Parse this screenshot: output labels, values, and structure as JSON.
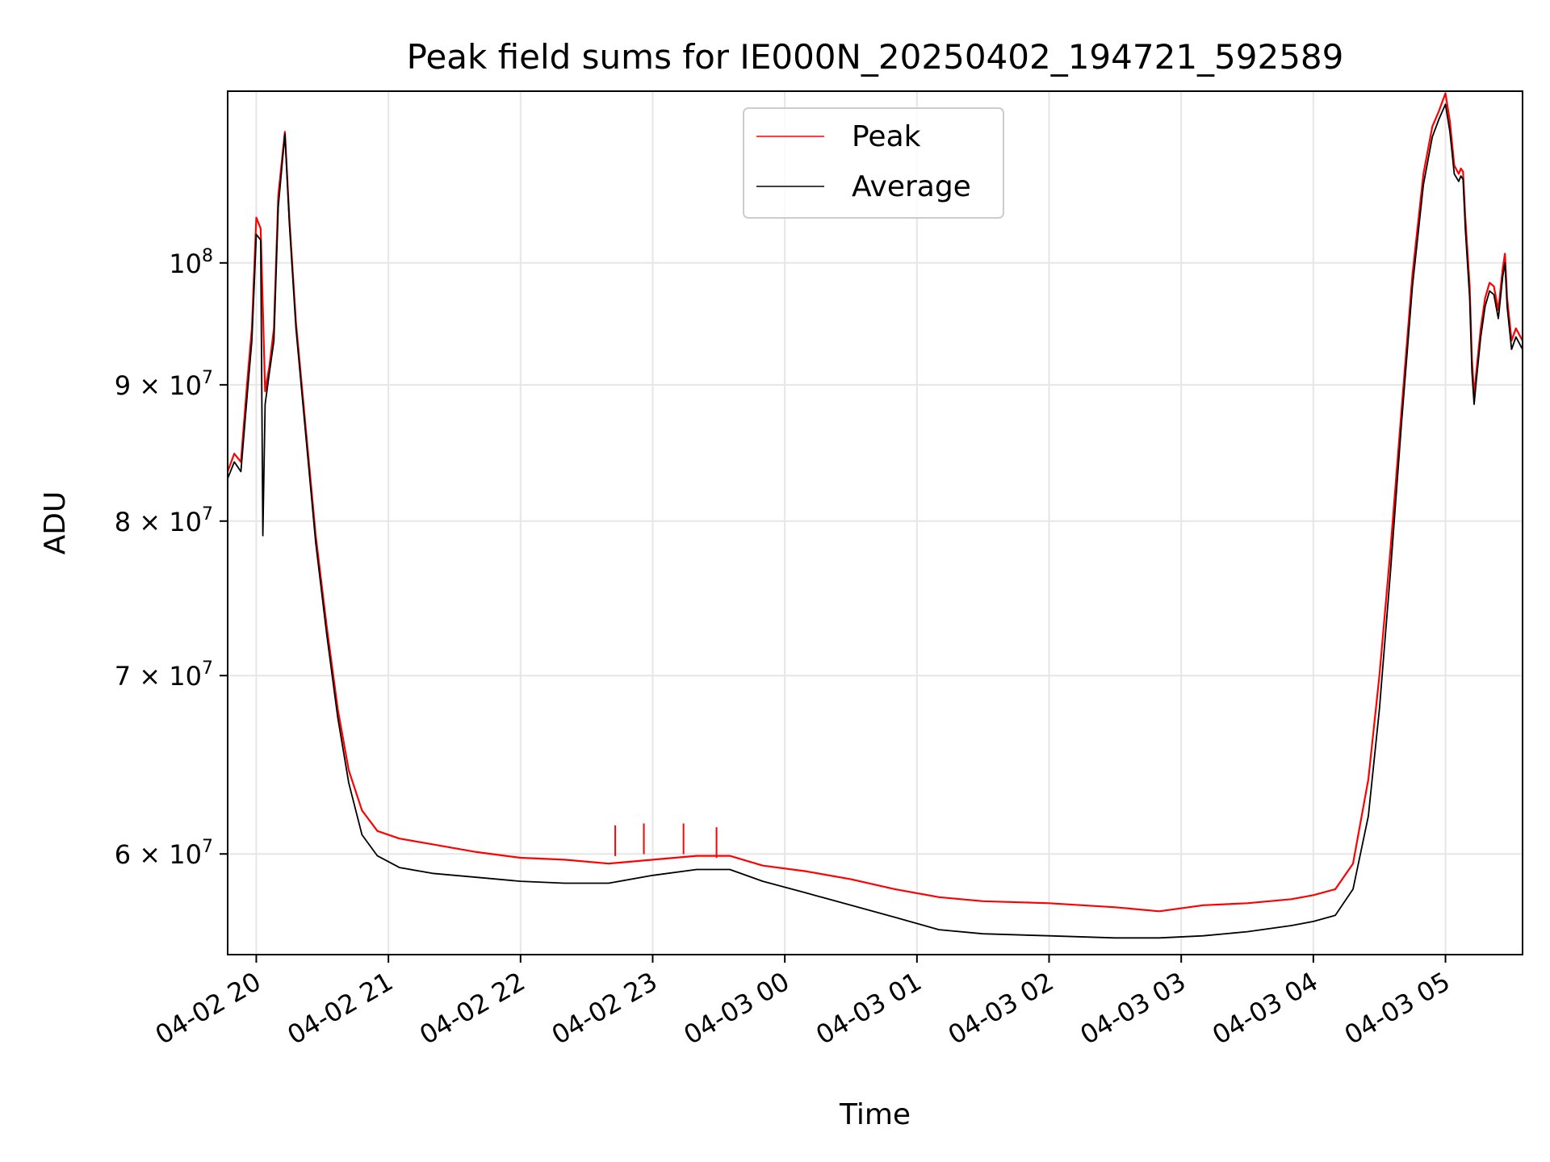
{
  "chart_data": {
    "type": "line",
    "title": "Peak field sums for IE000N_20250402_194721_592589",
    "xlabel": "Time",
    "ylabel": "ADU",
    "y_scale": "log",
    "ylim": [
      55000000,
      116000000
    ],
    "xlim": [
      "2025-04-02 19:47",
      "2025-04-03 05:35"
    ],
    "grid": true,
    "legend_position": "upper-center",
    "x_ticks": [
      {
        "t": "2025-04-02 20:00",
        "label": "04-02 20"
      },
      {
        "t": "2025-04-02 21:00",
        "label": "04-02 21"
      },
      {
        "t": "2025-04-02 22:00",
        "label": "04-02 22"
      },
      {
        "t": "2025-04-02 23:00",
        "label": "04-02 23"
      },
      {
        "t": "2025-04-03 00:00",
        "label": "04-03 00"
      },
      {
        "t": "2025-04-03 01:00",
        "label": "04-03 01"
      },
      {
        "t": "2025-04-03 02:00",
        "label": "04-03 02"
      },
      {
        "t": "2025-04-03 03:00",
        "label": "04-03 03"
      },
      {
        "t": "2025-04-03 04:00",
        "label": "04-03 04"
      },
      {
        "t": "2025-04-03 05:00",
        "label": "04-03 05"
      }
    ],
    "y_ticks": [
      {
        "value": 60000000,
        "mant": "6",
        "base": "10",
        "exp": "7"
      },
      {
        "value": 70000000,
        "mant": "7",
        "base": "10",
        "exp": "7"
      },
      {
        "value": 80000000,
        "mant": "8",
        "base": "10",
        "exp": "7"
      },
      {
        "value": 90000000,
        "mant": "9",
        "base": "10",
        "exp": "7"
      },
      {
        "value": 100000000,
        "mant": "",
        "base": "10",
        "exp": "8"
      }
    ],
    "series": [
      {
        "name": "Peak",
        "color": "#ff0000",
        "points": [
          [
            "2025-04-02 19:47",
            83500000
          ],
          [
            "2025-04-02 19:50",
            84800000
          ],
          [
            "2025-04-02 19:53",
            84200000
          ],
          [
            "2025-04-02 19:56",
            90500000
          ],
          [
            "2025-04-02 19:58",
            94500000
          ],
          [
            "2025-04-02 20:00",
            104000000
          ],
          [
            "2025-04-02 20:02",
            103000000
          ],
          [
            "2025-04-02 20:04",
            89500000
          ],
          [
            "2025-04-02 20:06",
            91500000
          ],
          [
            "2025-04-02 20:08",
            94500000
          ],
          [
            "2025-04-02 20:10",
            106000000
          ],
          [
            "2025-04-02 20:13",
            112000000
          ],
          [
            "2025-04-02 20:15",
            104000000
          ],
          [
            "2025-04-02 20:18",
            95000000
          ],
          [
            "2025-04-02 20:22",
            87500000
          ],
          [
            "2025-04-02 20:27",
            79000000
          ],
          [
            "2025-04-02 20:32",
            73000000
          ],
          [
            "2025-04-02 20:37",
            68000000
          ],
          [
            "2025-04-02 20:42",
            64500000
          ],
          [
            "2025-04-02 20:48",
            62300000
          ],
          [
            "2025-04-02 20:55",
            61200000
          ],
          [
            "2025-04-02 21:05",
            60800000
          ],
          [
            "2025-04-02 21:20",
            60500000
          ],
          [
            "2025-04-02 21:40",
            60100000
          ],
          [
            "2025-04-02 22:00",
            59800000
          ],
          [
            "2025-04-02 22:20",
            59700000
          ],
          [
            "2025-04-02 22:40",
            59500000
          ],
          [
            "2025-04-02 23:00",
            59700000
          ],
          [
            "2025-04-02 23:20",
            59900000
          ],
          [
            "2025-04-02 23:35",
            59900000
          ],
          [
            "2025-04-02 23:50",
            59400000
          ],
          [
            "2025-04-03 00:10",
            59100000
          ],
          [
            "2025-04-03 00:30",
            58700000
          ],
          [
            "2025-04-03 00:50",
            58200000
          ],
          [
            "2025-04-03 01:10",
            57800000
          ],
          [
            "2025-04-03 01:30",
            57600000
          ],
          [
            "2025-04-03 02:00",
            57500000
          ],
          [
            "2025-04-03 02:30",
            57300000
          ],
          [
            "2025-04-03 02:50",
            57100000
          ],
          [
            "2025-04-03 03:10",
            57400000
          ],
          [
            "2025-04-03 03:30",
            57500000
          ],
          [
            "2025-04-03 03:50",
            57700000
          ],
          [
            "2025-04-03 04:00",
            57900000
          ],
          [
            "2025-04-03 04:10",
            58200000
          ],
          [
            "2025-04-03 04:18",
            59500000
          ],
          [
            "2025-04-03 04:25",
            64000000
          ],
          [
            "2025-04-03 04:30",
            70000000
          ],
          [
            "2025-04-03 04:35",
            78000000
          ],
          [
            "2025-04-03 04:40",
            88000000
          ],
          [
            "2025-04-03 04:45",
            99000000
          ],
          [
            "2025-04-03 04:50",
            108000000
          ],
          [
            "2025-04-03 04:54",
            112500000
          ],
          [
            "2025-04-03 04:57",
            114000000
          ],
          [
            "2025-04-03 05:00",
            115800000
          ],
          [
            "2025-04-03 05:02",
            113000000
          ],
          [
            "2025-04-03 05:04",
            108800000
          ],
          [
            "2025-04-03 05:06",
            108000000
          ],
          [
            "2025-04-03 05:07",
            108500000
          ],
          [
            "2025-04-03 05:08",
            108200000
          ],
          [
            "2025-04-03 05:09",
            104000000
          ],
          [
            "2025-04-03 05:11",
            98000000
          ],
          [
            "2025-04-03 05:12",
            92000000
          ],
          [
            "2025-04-03 05:13",
            89200000
          ],
          [
            "2025-04-03 05:14",
            91000000
          ],
          [
            "2025-04-03 05:16",
            94500000
          ],
          [
            "2025-04-03 05:18",
            97000000
          ],
          [
            "2025-04-03 05:20",
            98300000
          ],
          [
            "2025-04-03 05:22",
            98000000
          ],
          [
            "2025-04-03 05:24",
            96000000
          ],
          [
            "2025-04-03 05:26",
            99500000
          ],
          [
            "2025-04-03 05:27",
            100800000
          ],
          [
            "2025-04-03 05:28",
            97000000
          ],
          [
            "2025-04-03 05:30",
            93500000
          ],
          [
            "2025-04-03 05:32",
            94500000
          ],
          [
            "2025-04-03 05:35",
            93500000
          ]
        ]
      },
      {
        "name": "Average",
        "color": "#000000",
        "points": [
          [
            "2025-04-02 19:47",
            83000000
          ],
          [
            "2025-04-02 19:50",
            84200000
          ],
          [
            "2025-04-02 19:53",
            83500000
          ],
          [
            "2025-04-02 19:56",
            89500000
          ],
          [
            "2025-04-02 19:58",
            93500000
          ],
          [
            "2025-04-02 20:00",
            102500000
          ],
          [
            "2025-04-02 20:02",
            102000000
          ],
          [
            "2025-04-02 20:03",
            79000000
          ],
          [
            "2025-04-02 20:04",
            88500000
          ],
          [
            "2025-04-02 20:06",
            91000000
          ],
          [
            "2025-04-02 20:08",
            93500000
          ],
          [
            "2025-04-02 20:10",
            105000000
          ],
          [
            "2025-04-02 20:13",
            111800000
          ],
          [
            "2025-04-02 20:15",
            103500000
          ],
          [
            "2025-04-02 20:18",
            94500000
          ],
          [
            "2025-04-02 20:22",
            87000000
          ],
          [
            "2025-04-02 20:27",
            78500000
          ],
          [
            "2025-04-02 20:32",
            72500000
          ],
          [
            "2025-04-02 20:37",
            67500000
          ],
          [
            "2025-04-02 20:42",
            63800000
          ],
          [
            "2025-04-02 20:48",
            61000000
          ],
          [
            "2025-04-02 20:55",
            59900000
          ],
          [
            "2025-04-02 21:05",
            59300000
          ],
          [
            "2025-04-02 21:20",
            59000000
          ],
          [
            "2025-04-02 21:40",
            58800000
          ],
          [
            "2025-04-02 22:00",
            58600000
          ],
          [
            "2025-04-02 22:20",
            58500000
          ],
          [
            "2025-04-02 22:40",
            58500000
          ],
          [
            "2025-04-02 23:00",
            58900000
          ],
          [
            "2025-04-02 23:20",
            59200000
          ],
          [
            "2025-04-02 23:35",
            59200000
          ],
          [
            "2025-04-02 23:50",
            58600000
          ],
          [
            "2025-04-03 00:10",
            58000000
          ],
          [
            "2025-04-03 00:30",
            57400000
          ],
          [
            "2025-04-03 00:50",
            56800000
          ],
          [
            "2025-04-03 01:10",
            56200000
          ],
          [
            "2025-04-03 01:30",
            56000000
          ],
          [
            "2025-04-03 02:00",
            55900000
          ],
          [
            "2025-04-03 02:30",
            55800000
          ],
          [
            "2025-04-03 02:50",
            55800000
          ],
          [
            "2025-04-03 03:10",
            55900000
          ],
          [
            "2025-04-03 03:30",
            56100000
          ],
          [
            "2025-04-03 03:50",
            56400000
          ],
          [
            "2025-04-03 04:00",
            56600000
          ],
          [
            "2025-04-03 04:10",
            56900000
          ],
          [
            "2025-04-03 04:18",
            58200000
          ],
          [
            "2025-04-03 04:25",
            62000000
          ],
          [
            "2025-04-03 04:30",
            68000000
          ],
          [
            "2025-04-03 04:35",
            76500000
          ],
          [
            "2025-04-03 04:40",
            87000000
          ],
          [
            "2025-04-03 04:45",
            98000000
          ],
          [
            "2025-04-03 04:50",
            107000000
          ],
          [
            "2025-04-03 04:54",
            111500000
          ],
          [
            "2025-04-03 04:57",
            113200000
          ],
          [
            "2025-04-03 05:00",
            114700000
          ],
          [
            "2025-04-03 05:02",
            112000000
          ],
          [
            "2025-04-03 05:04",
            108000000
          ],
          [
            "2025-04-03 05:06",
            107300000
          ],
          [
            "2025-04-03 05:07",
            107800000
          ],
          [
            "2025-04-03 05:08",
            107500000
          ],
          [
            "2025-04-03 05:09",
            103000000
          ],
          [
            "2025-04-03 05:11",
            97000000
          ],
          [
            "2025-04-03 05:12",
            91000000
          ],
          [
            "2025-04-03 05:13",
            88500000
          ],
          [
            "2025-04-03 05:14",
            90300000
          ],
          [
            "2025-04-03 05:16",
            93800000
          ],
          [
            "2025-04-03 05:18",
            96300000
          ],
          [
            "2025-04-03 05:20",
            97600000
          ],
          [
            "2025-04-03 05:22",
            97300000
          ],
          [
            "2025-04-03 05:24",
            95300000
          ],
          [
            "2025-04-03 05:26",
            98800000
          ],
          [
            "2025-04-03 05:27",
            100000000
          ],
          [
            "2025-04-03 05:28",
            96300000
          ],
          [
            "2025-04-03 05:30",
            92800000
          ],
          [
            "2025-04-03 05:32",
            93800000
          ],
          [
            "2025-04-03 05:35",
            92800000
          ]
        ]
      }
    ],
    "spikes": [
      {
        "series": "Peak",
        "t": "2025-04-02 22:43",
        "value": 61500000
      },
      {
        "series": "Peak",
        "t": "2025-04-02 22:56",
        "value": 61600000
      },
      {
        "series": "Peak",
        "t": "2025-04-02 23:14",
        "value": 61600000
      },
      {
        "series": "Peak",
        "t": "2025-04-02 23:29",
        "value": 61400000
      }
    ]
  }
}
